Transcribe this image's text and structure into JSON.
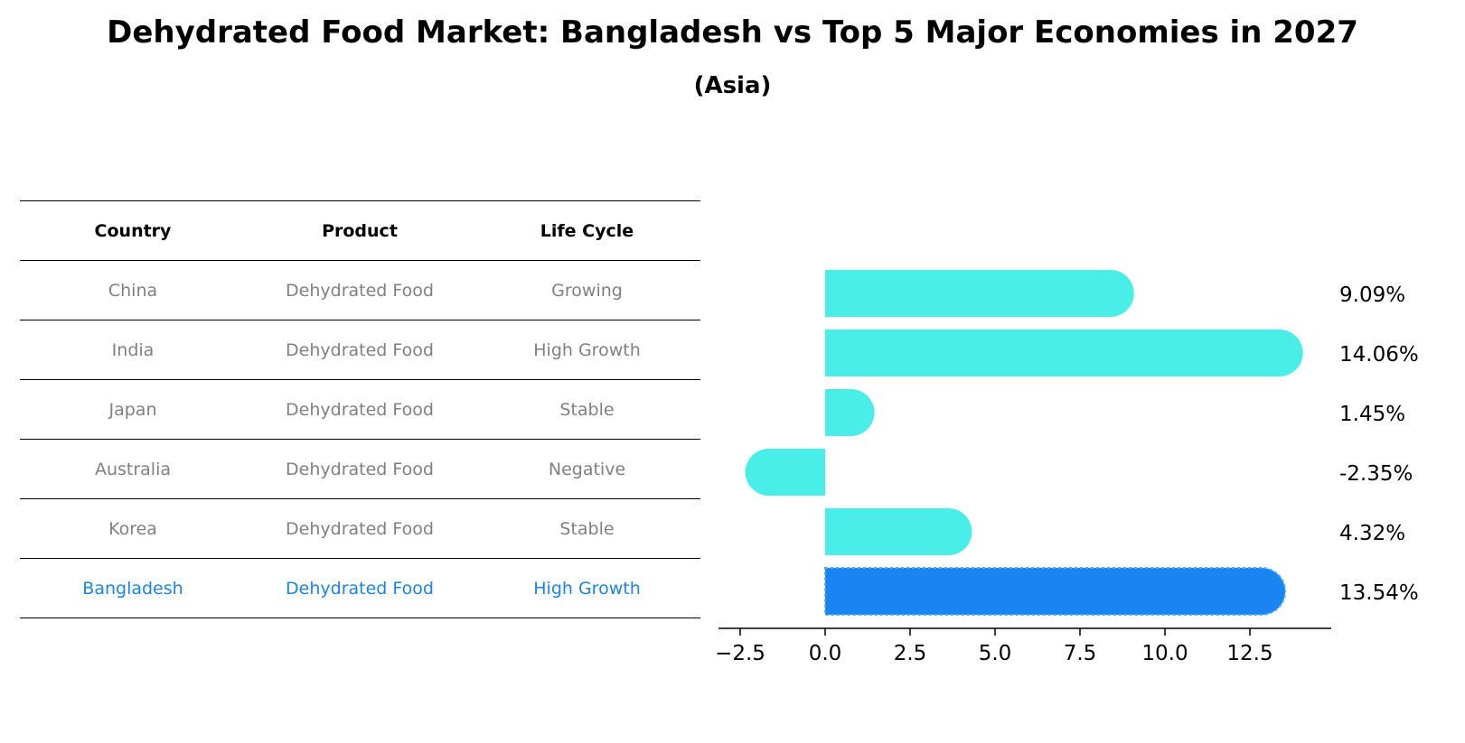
{
  "title": "Dehydrated Food Market: Bangladesh vs Top 5 Major Economies in 2027",
  "subtitle": "(Asia)",
  "table": {
    "headers": [
      "Country",
      "Product",
      "Life Cycle"
    ],
    "rows": [
      {
        "country": "China",
        "product": "Dehydrated Food",
        "life_cycle": "Growing"
      },
      {
        "country": "India",
        "product": "Dehydrated Food",
        "life_cycle": "High Growth"
      },
      {
        "country": "Japan",
        "product": "Dehydrated Food",
        "life_cycle": "Stable"
      },
      {
        "country": "Australia",
        "product": "Dehydrated Food",
        "life_cycle": "Negative"
      },
      {
        "country": "Korea",
        "product": "Dehydrated Food",
        "life_cycle": "Stable"
      },
      {
        "country": "Bangladesh",
        "product": "Dehydrated Food",
        "life_cycle": "High Growth"
      }
    ]
  },
  "chart_data": {
    "type": "bar",
    "orientation": "horizontal",
    "title": "Dehydrated Food Market: Bangladesh vs Top 5 Major Economies in 2027",
    "subtitle": "(Asia)",
    "categories": [
      "China",
      "India",
      "Japan",
      "Australia",
      "Korea",
      "Bangladesh"
    ],
    "values": [
      9.09,
      14.06,
      1.45,
      -2.35,
      4.32,
      13.54
    ],
    "value_labels": [
      "9.09%",
      "14.06%",
      "1.45%",
      "-2.35%",
      "4.32%",
      "13.54%"
    ],
    "x_ticks": [
      -2.5,
      0.0,
      2.5,
      5.0,
      7.5,
      10.0,
      12.5
    ],
    "x_tick_labels": [
      "−2.5",
      "0.0",
      "2.5",
      "5.0",
      "7.5",
      "10.0",
      "12.5"
    ],
    "xlim": [
      -3.2,
      14.9
    ],
    "xlabel": "",
    "ylabel": "",
    "grid": false,
    "highlight_category": "Bangladesh",
    "colors": {
      "default": "#4aeee9",
      "highlight": "#1a84f2"
    }
  }
}
